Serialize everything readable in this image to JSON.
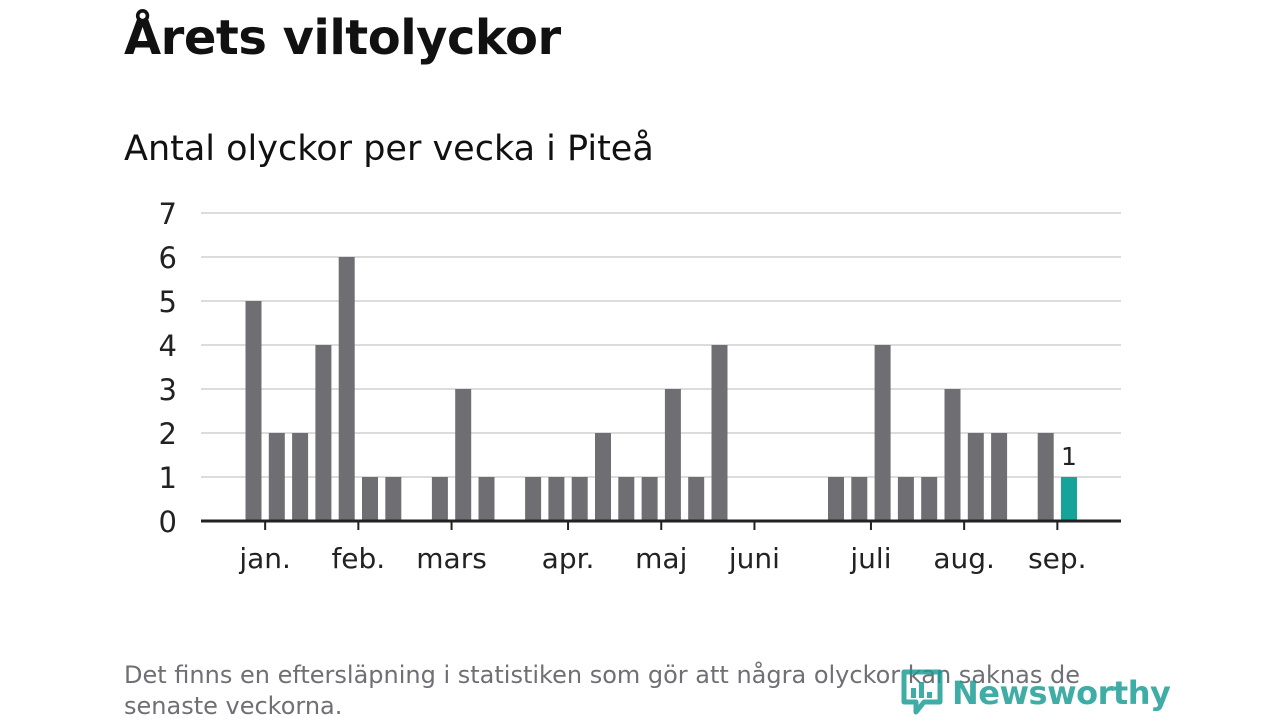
{
  "page": {
    "title": "Årets viltolyckor",
    "subtitle": "Antal olyckor per vecka i Piteå",
    "footnote": "Det finns en eftersläpning i statistiken som gör att några olyckor kan saknas de senaste veckorna.",
    "brand": "Newsworthy",
    "brand_icon": "newsworthy-logo-icon"
  },
  "chart_data": {
    "type": "bar",
    "xlabel": "",
    "ylabel": "",
    "weeks": [
      1,
      2,
      3,
      4,
      5,
      6,
      7,
      8,
      9,
      10,
      11,
      12,
      13,
      14,
      15,
      16,
      17,
      18,
      19,
      20,
      21,
      22,
      23,
      24,
      25,
      26,
      27,
      28,
      29,
      30,
      31,
      32,
      33,
      34,
      35,
      36,
      37
    ],
    "values": [
      5,
      2,
      2,
      4,
      6,
      1,
      1,
      0,
      1,
      3,
      1,
      0,
      1,
      1,
      1,
      2,
      1,
      1,
      3,
      1,
      4,
      0,
      0,
      0,
      0,
      1,
      1,
      4,
      1,
      1,
      3,
      2,
      2,
      0,
      2,
      1,
      null
    ],
    "highlight_week": 36,
    "highlight_label": "1",
    "month_ticks": [
      {
        "label": "jan.",
        "week": 1.5
      },
      {
        "label": "feb.",
        "week": 5.5
      },
      {
        "label": "mars",
        "week": 9.5
      },
      {
        "label": "apr.",
        "week": 14.5
      },
      {
        "label": "maj",
        "week": 18.5
      },
      {
        "label": "juni",
        "week": 22.5
      },
      {
        "label": "juli",
        "week": 27.5
      },
      {
        "label": "aug.",
        "week": 31.5
      },
      {
        "label": "sep.",
        "week": 35.5
      }
    ],
    "yticks": [
      0,
      1,
      2,
      3,
      4,
      5,
      6,
      7
    ],
    "ylim": [
      0,
      7
    ],
    "grid": true,
    "colors": {
      "bar": "#6f6e73",
      "highlight": "#16a39a",
      "grid": "#dcdcdc",
      "axis": "#222222",
      "text": "#222222"
    }
  }
}
